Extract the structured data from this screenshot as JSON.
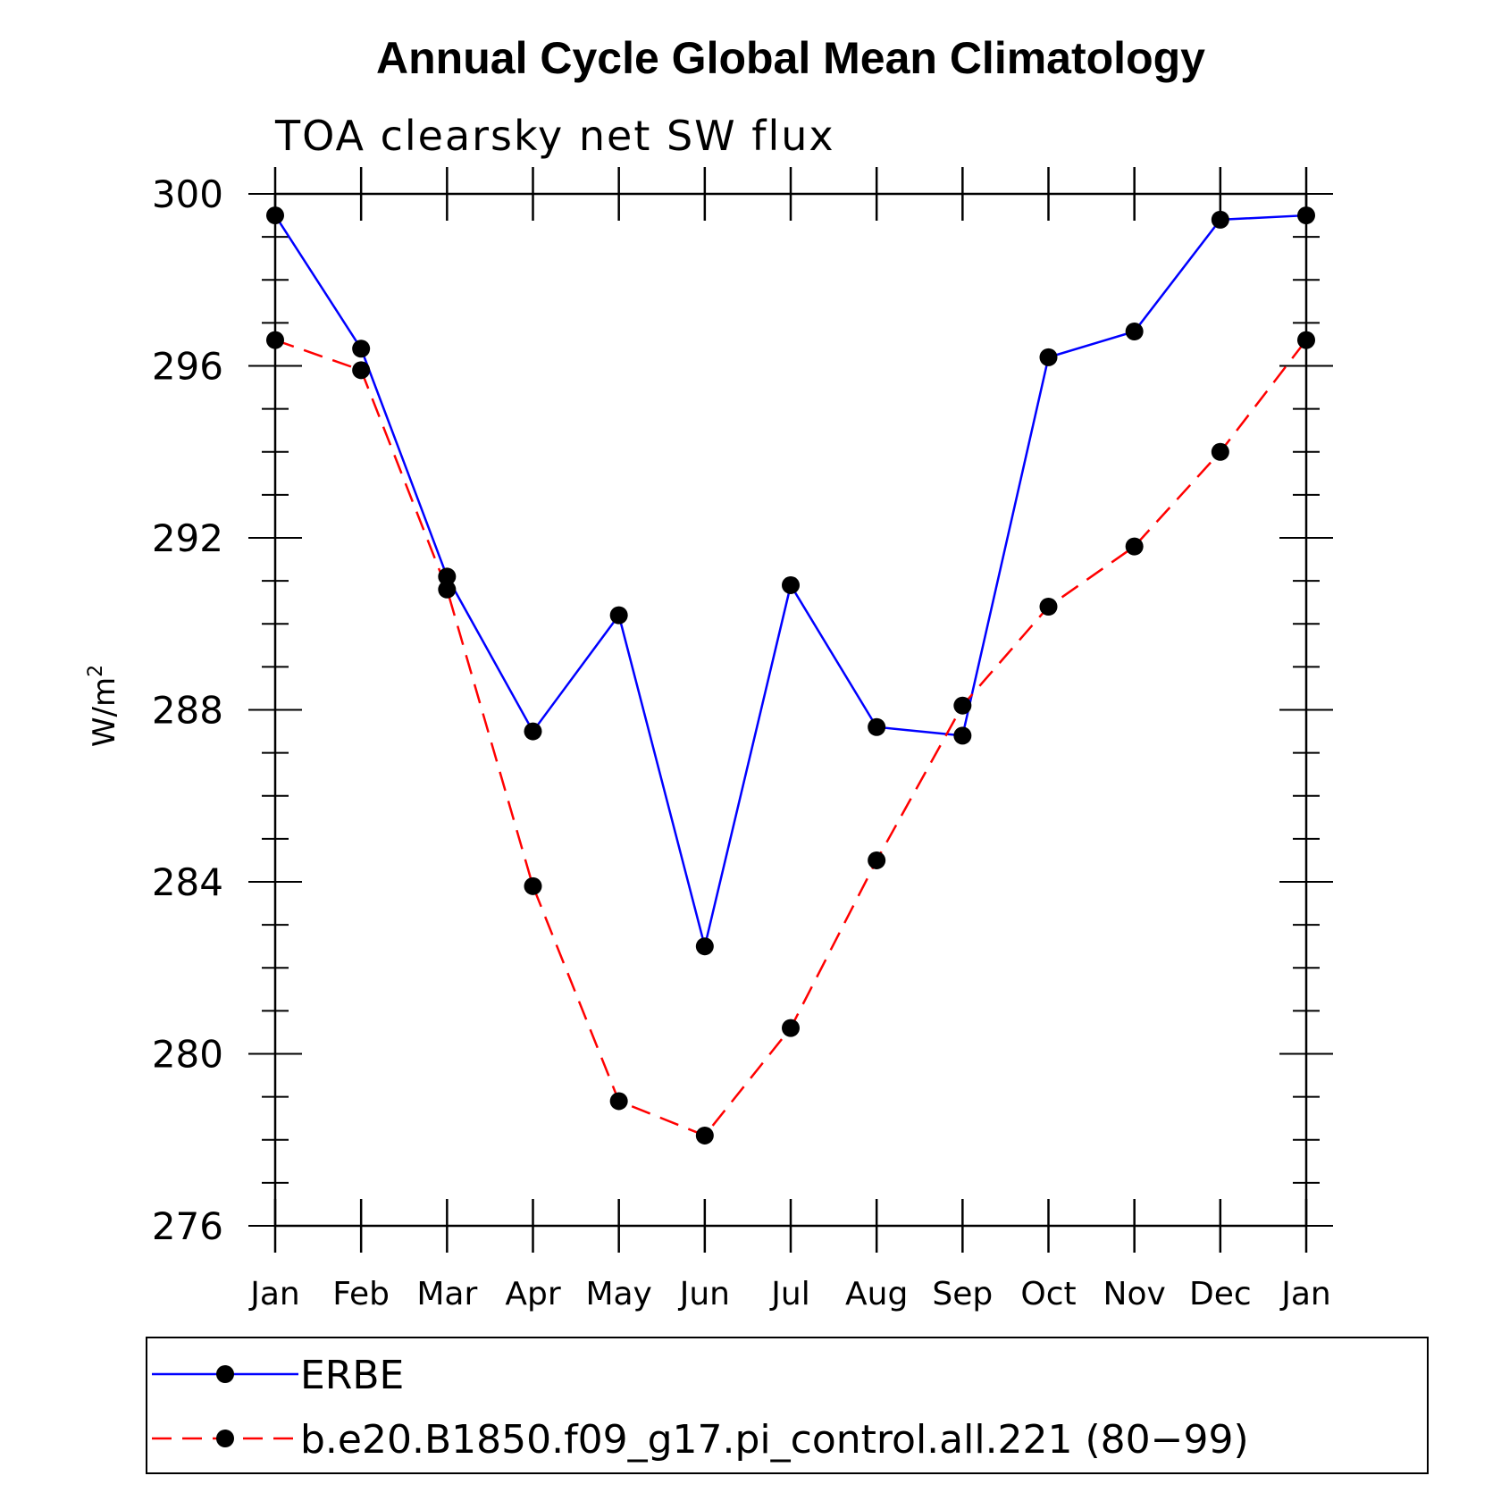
{
  "chart_data": {
    "type": "line",
    "title": "Annual Cycle Global Mean Climatology",
    "subtitle": "TOA clearsky net SW flux",
    "ylabel": "W/m",
    "ylabel_superscript": "2",
    "xlabel": "",
    "categories": [
      "Jan",
      "Feb",
      "Mar",
      "Apr",
      "May",
      "Jun",
      "Jul",
      "Aug",
      "Sep",
      "Oct",
      "Nov",
      "Dec",
      "Jan"
    ],
    "ylim": [
      276,
      300
    ],
    "yticks": [
      "276",
      "280",
      "284",
      "288",
      "292",
      "296",
      "300"
    ],
    "grid": false,
    "legend_position": "bottom",
    "series": [
      {
        "name": "ERBE",
        "color": "#0000ff",
        "line_style": "solid",
        "marker": "filled-circle",
        "values": [
          299.5,
          296.4,
          291.1,
          287.5,
          290.2,
          282.5,
          290.9,
          287.6,
          287.4,
          296.2,
          296.8,
          299.4,
          299.5
        ]
      },
      {
        "name": "b.e20.B1850.f09_g17.pi_control.all.221 (80−99)",
        "color": "#ff0000",
        "line_style": "dashed",
        "marker": "filled-circle",
        "values": [
          296.6,
          295.9,
          290.8,
          283.9,
          278.9,
          278.1,
          280.6,
          284.5,
          288.1,
          290.4,
          291.8,
          294.0,
          296.6
        ]
      }
    ]
  }
}
